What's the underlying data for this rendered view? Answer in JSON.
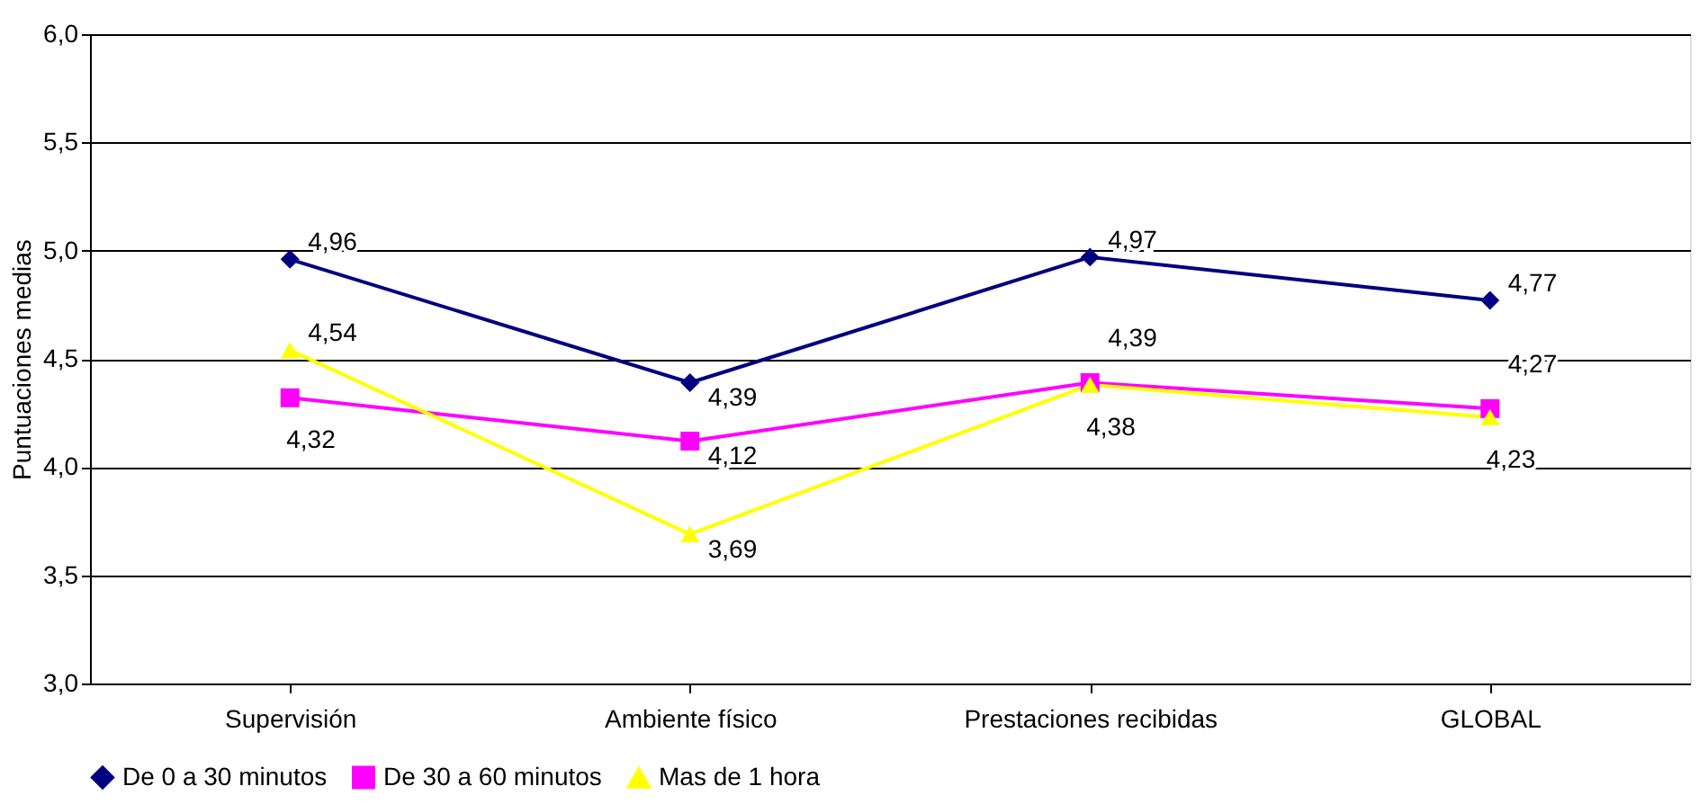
{
  "chart_data": {
    "type": "line",
    "ylabel": "Puntuaciones medias",
    "categories": [
      "Supervisión",
      "Ambiente físico",
      "Prestaciones recibidas",
      "GLOBAL"
    ],
    "series": [
      {
        "name": "De 0 a 30 minutos",
        "color": "#000080",
        "marker": "diamond",
        "values": [
          4.96,
          4.39,
          4.97,
          4.77
        ],
        "value_labels": [
          "4,96",
          "4,39",
          "4,97",
          "4,77"
        ]
      },
      {
        "name": "De 30 a 60 minutos",
        "color": "#ff00ff",
        "marker": "square",
        "values": [
          4.32,
          4.12,
          4.39,
          4.27
        ],
        "value_labels": [
          "4,32",
          "4,12",
          "4,39",
          "4,27"
        ]
      },
      {
        "name": "Mas de 1 hora",
        "color": "#ffff00",
        "marker": "triangle",
        "values": [
          4.54,
          3.69,
          4.38,
          4.23
        ],
        "value_labels": [
          "4,54",
          "3,69",
          "4,38",
          "4,23"
        ]
      }
    ],
    "ylim": [
      3.0,
      6.0
    ],
    "yticks": [
      {
        "value": 3.0,
        "label": "3,0"
      },
      {
        "value": 3.5,
        "label": "3,5"
      },
      {
        "value": 4.0,
        "label": "4,0"
      },
      {
        "value": 4.5,
        "label": "4,5"
      },
      {
        "value": 5.0,
        "label": "5,0"
      },
      {
        "value": 5.5,
        "label": "5,5"
      },
      {
        "value": 6.0,
        "label": "6,0"
      }
    ],
    "grid": "y",
    "legend": "bottom",
    "line_style": "solid"
  }
}
